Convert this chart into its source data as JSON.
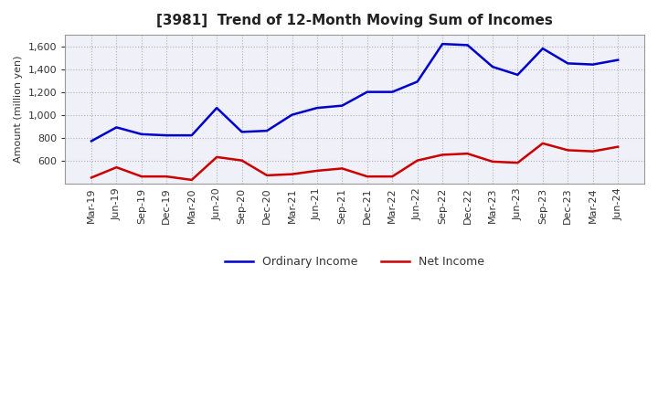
{
  "title": "[3981]  Trend of 12-Month Moving Sum of Incomes",
  "ylabel": "Amount (million yen)",
  "background_color": "#ffffff",
  "plot_bg_color": "#f0f0f8",
  "grid_color": "#aaaaaa",
  "x_labels": [
    "Mar-19",
    "Jun-19",
    "Sep-19",
    "Dec-19",
    "Mar-20",
    "Jun-20",
    "Sep-20",
    "Dec-20",
    "Mar-21",
    "Jun-21",
    "Sep-21",
    "Dec-21",
    "Mar-22",
    "Jun-22",
    "Sep-22",
    "Dec-22",
    "Mar-23",
    "Jun-23",
    "Sep-23",
    "Dec-23",
    "Mar-24",
    "Jun-24"
  ],
  "ordinary_income": [
    770,
    890,
    830,
    820,
    820,
    1060,
    850,
    860,
    1000,
    1060,
    1080,
    1200,
    1200,
    1290,
    1620,
    1610,
    1420,
    1350,
    1580,
    1450,
    1440,
    1480
  ],
  "net_income": [
    450,
    540,
    460,
    460,
    430,
    630,
    600,
    470,
    480,
    510,
    530,
    460,
    460,
    600,
    650,
    660,
    590,
    580,
    750,
    690,
    680,
    720
  ],
  "ordinary_color": "#0000cc",
  "net_color": "#cc0000",
  "ylim_min": 400,
  "ylim_max": 1700,
  "yticks": [
    600,
    800,
    1000,
    1200,
    1400,
    1600
  ],
  "title_fontsize": 11,
  "axis_fontsize": 8,
  "tick_fontsize": 8
}
